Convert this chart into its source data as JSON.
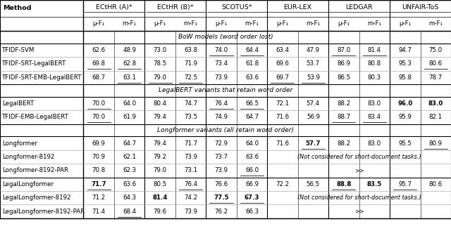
{
  "col_headers_top": [
    "",
    "ECtHR (A)*",
    "ECtHR (B)*",
    "SCOTUS*",
    "EUR-LEX",
    "LEDGAR",
    "UNFAIR-ToS"
  ],
  "col_headers_sub": [
    "Method",
    "μ-F₁",
    "m-F₁",
    "μ-F₁",
    "m-F₁",
    "μ-F₁",
    "m-F₁",
    "μ-F₁",
    "m-F₁",
    "μ-F₁",
    "m-F₁",
    "μ-F₁",
    "m-F₁"
  ],
  "section_bow": "BoW models (word order lost)",
  "section_legal": "LegalBERT variants that retain word order",
  "section_long": "Longformer variants (all retain word order)",
  "rows": [
    {
      "name": "TFIDF-SVM",
      "vals": [
        "62.6",
        "48.9",
        "73.0",
        "63.8",
        "74.0",
        "64.4",
        "63.4",
        "47.9",
        "87.0",
        "81.4",
        "94.7",
        "75.0"
      ],
      "underline": [
        4,
        5,
        8,
        9
      ],
      "bold": [],
      "special": false
    },
    {
      "name": "TFIDF-SRT-LegalBERT",
      "vals": [
        "69.8",
        "62.8",
        "78.5",
        "71.9",
        "73.4",
        "61.8",
        "69.6",
        "53.7",
        "86.9",
        "80.8",
        "95.3",
        "80.6"
      ],
      "underline": [
        0,
        1,
        11
      ],
      "bold": [],
      "special": false
    },
    {
      "name": "TFIDF-SRT-EMB-LegalBERT",
      "vals": [
        "68.7",
        "63.1",
        "79.0",
        "72.5",
        "73.9",
        "63.6",
        "69.7",
        "53.9",
        "86.5",
        "80.3",
        "95.8",
        "78.7"
      ],
      "underline": [
        1,
        2,
        3,
        6,
        7
      ],
      "bold": [],
      "special": false
    },
    {
      "name": "LegalBERT",
      "vals": [
        "70.0",
        "64.0",
        "80.4",
        "74.7",
        "76.4",
        "66.5",
        "72.1",
        "57.4",
        "88.2",
        "83.0",
        "96.0",
        "83.0"
      ],
      "underline": [
        0,
        4,
        5
      ],
      "bold": [
        10,
        11
      ],
      "special": false
    },
    {
      "name": "TFIDF-EMB-LegalBERT",
      "vals": [
        "70.0",
        "61.9",
        "79.4",
        "73.5",
        "74.9",
        "64.7",
        "71.6",
        "56.9",
        "88.7",
        "83.4",
        "95.9",
        "82.1"
      ],
      "underline": [
        0,
        8,
        9
      ],
      "bold": [],
      "special": false
    },
    {
      "name": "Longformer",
      "vals": [
        "69.9",
        "64.7",
        "79.4",
        "71.7",
        "72.9",
        "64.0",
        "71.6",
        "57.7",
        "88.2",
        "83.0",
        "95.5",
        "80.9"
      ],
      "underline": [
        7,
        11
      ],
      "bold": [
        7
      ],
      "special": false
    },
    {
      "name": "Longformer-8192",
      "vals": [
        "70.9",
        "62.1",
        "79.2",
        "73.9",
        "73.7",
        "63.6",
        "(Not considered for short-document tasks.)",
        "",
        "",
        "",
        "",
        ""
      ],
      "underline": [],
      "bold": [],
      "special": true,
      "special_col": 6,
      "special_text": "(Not considered for short-document tasks.)"
    },
    {
      "name": "Longformer-8192-PAR",
      "vals": [
        "70.8",
        "62.3",
        "79.0",
        "73.1",
        "73.9",
        "66.0",
        ">>",
        "",
        "",
        "",
        "",
        ""
      ],
      "underline": [
        5
      ],
      "bold": [],
      "special": true,
      "special_col": 6,
      "special_text": ">>"
    },
    {
      "name": "LegalLongformer",
      "vals": [
        "71.7",
        "63.6",
        "80.5",
        "76.4",
        "76.6",
        "66.9",
        "72.2",
        "56.5",
        "88.8",
        "83.5",
        "95.7",
        "80.6"
      ],
      "underline": [
        0,
        3,
        8,
        10
      ],
      "bold": [
        0,
        8,
        9
      ],
      "special": false
    },
    {
      "name": "LegalLongformer-8192",
      "vals": [
        "71.2",
        "64.3",
        "81.4",
        "74.2",
        "77.5",
        "67.3",
        "(Not considered for short-document tasks.)",
        "",
        "",
        "",
        "",
        ""
      ],
      "underline": [
        4,
        5
      ],
      "bold": [
        2,
        4,
        5
      ],
      "special": true,
      "special_col": 6,
      "special_text": "(Not considered for short-document tasks.)"
    },
    {
      "name": "LegalLongformer-8192-PAR",
      "vals": [
        "71.4",
        "68.4",
        "79.6",
        "73.9",
        "76.2",
        "66.3",
        ">>",
        "",
        "",
        "",
        "",
        ""
      ],
      "underline": [
        1
      ],
      "bold": [],
      "special": true,
      "special_col": 6,
      "special_text": ">>"
    }
  ],
  "group_starts": [
    1,
    3,
    5,
    7,
    9,
    11
  ],
  "group_ends": [
    3,
    5,
    7,
    9,
    11,
    13
  ],
  "figsize": [
    6.4,
    3.29
  ],
  "dpi": 100
}
